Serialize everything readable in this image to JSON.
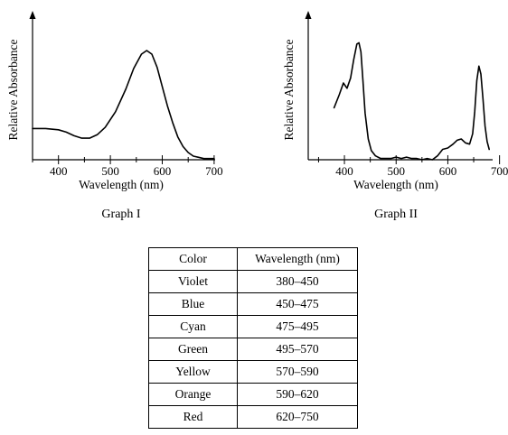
{
  "chart_data": [
    {
      "type": "line",
      "xlabel": "Wavelength (nm)",
      "ylabel": "Relative Absorbance",
      "caption": "Graph I",
      "xlim": [
        350,
        700
      ],
      "ylim": [
        0,
        1
      ],
      "xticks": [
        400,
        500,
        600,
        700
      ],
      "x": [
        350,
        375,
        400,
        415,
        430,
        445,
        460,
        475,
        490,
        510,
        530,
        545,
        560,
        570,
        580,
        590,
        600,
        610,
        620,
        630,
        640,
        650,
        660,
        670,
        680,
        690,
        700
      ],
      "y": [
        0.26,
        0.26,
        0.25,
        0.23,
        0.2,
        0.18,
        0.18,
        0.21,
        0.27,
        0.4,
        0.59,
        0.76,
        0.88,
        0.91,
        0.88,
        0.77,
        0.61,
        0.45,
        0.31,
        0.19,
        0.11,
        0.06,
        0.03,
        0.02,
        0.01,
        0.01,
        0.01
      ]
    },
    {
      "type": "line",
      "xlabel": "Wavelength (nm)",
      "ylabel": "Relative Absorbance",
      "caption": "Graph II",
      "xlim": [
        330,
        700
      ],
      "ylim": [
        0,
        1
      ],
      "xticks": [
        400,
        500,
        600,
        700
      ],
      "x": [
        380,
        390,
        398,
        405,
        412,
        418,
        424,
        428,
        432,
        436,
        440,
        446,
        452,
        460,
        470,
        480,
        490,
        500,
        510,
        520,
        530,
        540,
        550,
        560,
        570,
        580,
        590,
        600,
        610,
        618,
        626,
        634,
        642,
        648,
        652,
        656,
        660,
        664,
        668,
        672,
        676,
        680
      ],
      "y": [
        0.4,
        0.5,
        0.59,
        0.55,
        0.63,
        0.77,
        0.89,
        0.9,
        0.83,
        0.6,
        0.36,
        0.16,
        0.07,
        0.03,
        0.01,
        0.01,
        0.01,
        0.02,
        0.01,
        0.02,
        0.01,
        0.01,
        0.0,
        0.01,
        0.0,
        0.03,
        0.08,
        0.09,
        0.12,
        0.15,
        0.16,
        0.13,
        0.12,
        0.2,
        0.37,
        0.61,
        0.72,
        0.66,
        0.47,
        0.26,
        0.14,
        0.08
      ]
    },
    {
      "type": "table",
      "columns": [
        "Color",
        "Wavelength (nm)"
      ],
      "rows": [
        [
          "Violet",
          "380–450"
        ],
        [
          "Blue",
          "450–475"
        ],
        [
          "Cyan",
          "475–495"
        ],
        [
          "Green",
          "495–570"
        ],
        [
          "Yellow",
          "570–590"
        ],
        [
          "Orange",
          "590–620"
        ],
        [
          "Red",
          "620–750"
        ]
      ]
    }
  ]
}
